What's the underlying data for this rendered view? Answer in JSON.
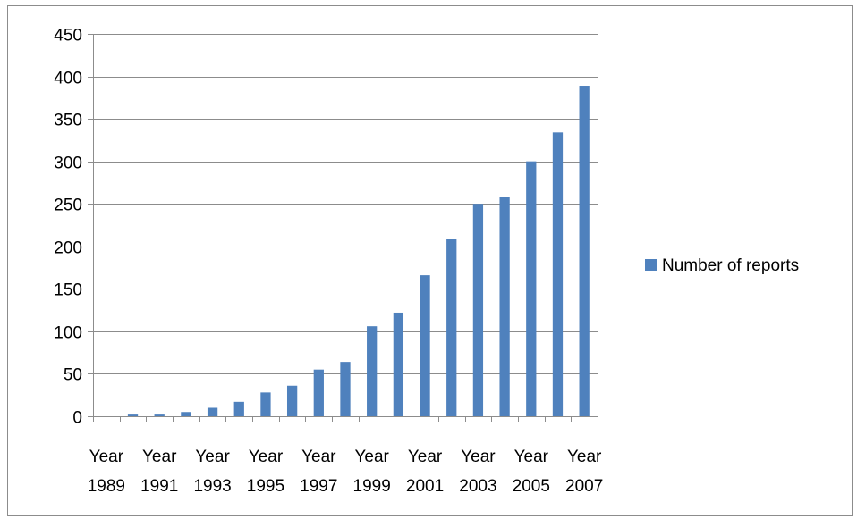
{
  "chart_data": {
    "type": "bar",
    "categories": [
      "Year 1989",
      "Year 1990",
      "Year 1991",
      "Year 1992",
      "Year 1993",
      "Year 1994",
      "Year 1995",
      "Year 1996",
      "Year 1997",
      "Year 1998",
      "Year 1999",
      "Year 2000",
      "Year 2001",
      "Year 2002",
      "Year 2003",
      "Year 2004",
      "Year 2005",
      "Year 2006",
      "Year 2007"
    ],
    "x_tick_labels": [
      "Year 1989",
      "Year 1991",
      "Year 1993",
      "Year 1995",
      "Year 1997",
      "Year 1999",
      "Year 2001",
      "Year 2003",
      "Year 2005",
      "Year 2007"
    ],
    "series": [
      {
        "name": "Number of reports",
        "color": "#4f81bd",
        "values": [
          0,
          2,
          2,
          5,
          10,
          17,
          28,
          36,
          55,
          64,
          106,
          122,
          166,
          209,
          250,
          258,
          300,
          334,
          389
        ]
      }
    ],
    "ylim": [
      0,
      450
    ],
    "y_ticks": [
      0,
      50,
      100,
      150,
      200,
      250,
      300,
      350,
      400,
      450
    ],
    "grid": true,
    "legend_position": "right",
    "title": "",
    "xlabel": "",
    "ylabel": ""
  }
}
